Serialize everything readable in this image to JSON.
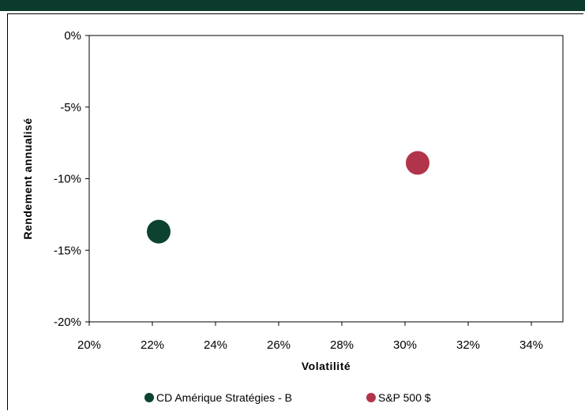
{
  "colors": {
    "header": "#0b3b2c",
    "series_fund": "#0d4230",
    "series_index": "#b2344b"
  },
  "chart_data": {
    "type": "scatter",
    "title": "",
    "xlabel": "Volatilité",
    "ylabel": "Rendement annualisé",
    "xlim": [
      0.2,
      0.35
    ],
    "ylim": [
      -0.2,
      0.0
    ],
    "xticks": [
      0.2,
      0.22,
      0.24,
      0.26,
      0.28,
      0.3,
      0.32,
      0.34
    ],
    "xtick_labels": [
      "20%",
      "22%",
      "24%",
      "26%",
      "28%",
      "30%",
      "32%",
      "34%"
    ],
    "yticks": [
      0.0,
      -0.05,
      -0.1,
      -0.15,
      -0.2
    ],
    "ytick_labels": [
      "0%",
      "-5%",
      "-10%",
      "-15%",
      "-20%"
    ],
    "grid": false,
    "legend_position": "bottom",
    "series": [
      {
        "name": "CD Amérique Stratégies - B",
        "x": 0.222,
        "y": -0.137,
        "color": "#0d4230"
      },
      {
        "name": "S&P 500 $",
        "x": 0.304,
        "y": -0.089,
        "color": "#b2344b"
      }
    ]
  }
}
